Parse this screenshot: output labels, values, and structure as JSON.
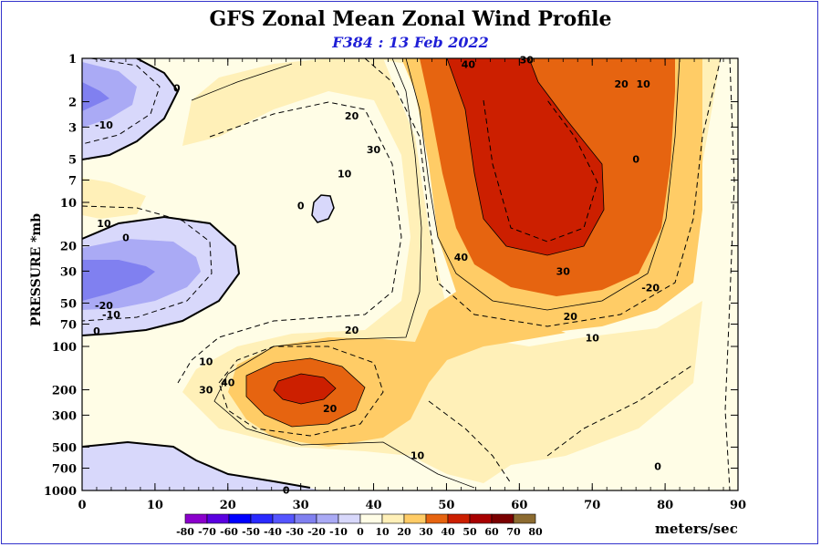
{
  "title": "GFS Zonal Mean Zonal Wind Profile",
  "subtitle": "F384 : 13 Feb 2022",
  "chart_data": {
    "type": "contour",
    "title": "GFS Zonal Mean Zonal Wind Profile",
    "subtitle": "F384 : 13 Feb 2022",
    "xlabel": "",
    "ylabel": "PRESSURE *mb",
    "x_range": [
      0,
      90
    ],
    "x_ticks": [
      0,
      10,
      20,
      30,
      40,
      50,
      60,
      70,
      80,
      90
    ],
    "y_scale": "log",
    "y_range": [
      1000,
      1
    ],
    "y_ticks": [
      1,
      2,
      3,
      5,
      7,
      10,
      20,
      30,
      50,
      70,
      100,
      200,
      300,
      500,
      700,
      1000
    ],
    "y_tick_labels": [
      "1",
      "2",
      "3",
      "5",
      "7",
      "10",
      "20",
      "30",
      "50",
      "70",
      "100",
      "200",
      "300",
      "500",
      "700",
      "1000"
    ],
    "units": "meters/sec",
    "colorbar": {
      "levels": [
        -80,
        -70,
        -60,
        -50,
        -40,
        -30,
        -20,
        -10,
        0,
        10,
        20,
        30,
        40,
        50,
        60,
        70,
        80
      ],
      "colors": [
        "#8b00cc",
        "#5a00e0",
        "#0000ff",
        "#2a2aff",
        "#5555ff",
        "#8080f0",
        "#aaaaf5",
        "#d8d8fb",
        "#fffde6",
        "#fff0b8",
        "#ffcc66",
        "#e66410",
        "#cc1f00",
        "#a80000",
        "#7a0000",
        "#8c6b30"
      ]
    },
    "contour_labels": [
      {
        "x": 13,
        "p": 1.6,
        "text": "0"
      },
      {
        "x": 3,
        "p": 2.9,
        "text": "-10"
      },
      {
        "x": 3,
        "p": 14,
        "text": "10"
      },
      {
        "x": 6,
        "p": 17.5,
        "text": "0"
      },
      {
        "x": 3,
        "p": 52,
        "text": "-20"
      },
      {
        "x": 4,
        "p": 60,
        "text": "-10"
      },
      {
        "x": 2,
        "p": 78,
        "text": "0"
      },
      {
        "x": 30,
        "p": 10.5,
        "text": "0"
      },
      {
        "x": 37,
        "p": 2.5,
        "text": "20"
      },
      {
        "x": 40,
        "p": 4.3,
        "text": "30"
      },
      {
        "x": 36,
        "p": 6.3,
        "text": "10"
      },
      {
        "x": 53,
        "p": 1.1,
        "text": "40"
      },
      {
        "x": 61,
        "p": 1.02,
        "text": "30"
      },
      {
        "x": 74,
        "p": 1.5,
        "text": "20"
      },
      {
        "x": 77,
        "p": 1.5,
        "text": "10"
      },
      {
        "x": 76,
        "p": 5,
        "text": "0"
      },
      {
        "x": 52,
        "p": 24,
        "text": "40"
      },
      {
        "x": 66,
        "p": 30,
        "text": "30"
      },
      {
        "x": 67,
        "p": 62,
        "text": "20"
      },
      {
        "x": 70,
        "p": 87,
        "text": "10"
      },
      {
        "x": 78,
        "p": 39,
        "text": "-20"
      },
      {
        "x": 37,
        "p": 77,
        "text": "20"
      },
      {
        "x": 17,
        "p": 127,
        "text": "10"
      },
      {
        "x": 20,
        "p": 178,
        "text": "40"
      },
      {
        "x": 17,
        "p": 200,
        "text": "30"
      },
      {
        "x": 34,
        "p": 270,
        "text": "20"
      },
      {
        "x": 46,
        "p": 570,
        "text": "10"
      },
      {
        "x": 28,
        "p": 990,
        "text": "0"
      },
      {
        "x": 79,
        "p": 680,
        "text": "0"
      }
    ]
  }
}
